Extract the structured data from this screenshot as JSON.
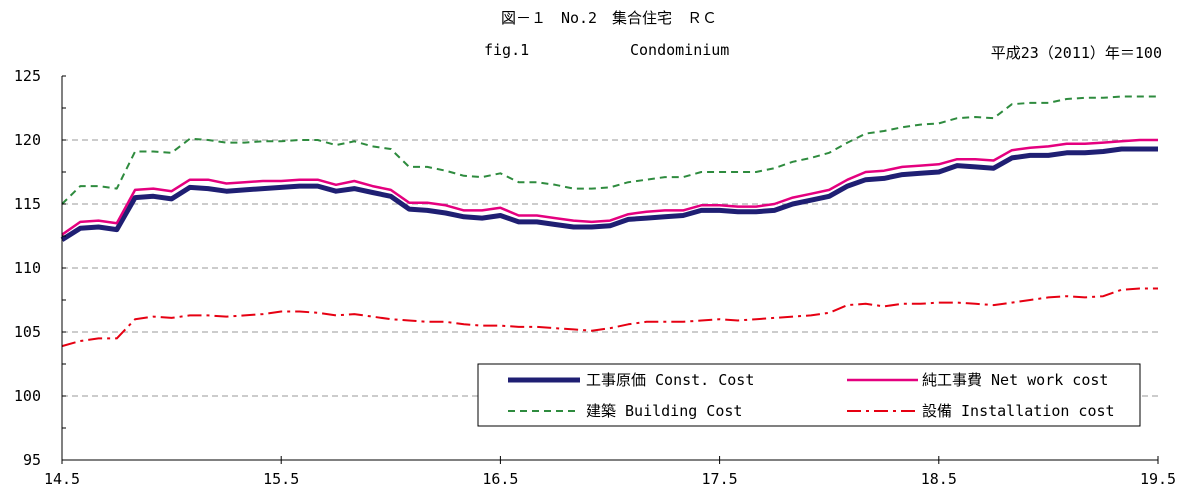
{
  "chart_data": {
    "type": "line",
    "title": "図－１　No.2　集合住宅　ＲＣ",
    "subtitle": [
      "fig.1",
      "Condominium"
    ],
    "base_note": "平成23（2011）年＝100",
    "ylim": [
      95,
      125
    ],
    "xlim": [
      14.5,
      19.5
    ],
    "y_ticks": [
      95,
      100,
      105,
      110,
      115,
      120,
      125
    ],
    "x_ticks": [
      "14.5",
      "15.5",
      "16.5",
      "17.5",
      "18.5",
      "19.5"
    ],
    "grid": true,
    "legend": "inside-bottom-right",
    "series": [
      {
        "name": "工事原価 Const. Cost",
        "color": "#1F1F73",
        "style": "solid",
        "values": [
          112.2,
          113.1,
          113.2,
          113.0,
          115.5,
          115.6,
          115.4,
          116.3,
          116.2,
          116.0,
          116.1,
          116.2,
          116.3,
          116.4,
          116.4,
          116.0,
          116.2,
          115.9,
          115.6,
          114.6,
          114.5,
          114.3,
          114.0,
          113.9,
          114.1,
          113.6,
          113.6,
          113.4,
          113.2,
          113.2,
          113.3,
          113.8,
          113.9,
          114.0,
          114.1,
          114.5,
          114.5,
          114.4,
          114.4,
          114.5,
          115.0,
          115.3,
          115.6,
          116.4,
          116.9,
          117.0,
          117.3,
          117.4,
          117.5,
          118.0,
          117.9,
          117.8,
          118.6,
          118.8,
          118.8,
          119.0,
          119.0,
          119.1,
          119.3,
          119.3,
          119.3
        ]
      },
      {
        "name": "純工事費 Net work cost",
        "color": "#E4007F",
        "style": "solid",
        "values": [
          112.6,
          113.6,
          113.7,
          113.5,
          116.1,
          116.2,
          116.0,
          116.9,
          116.9,
          116.6,
          116.7,
          116.8,
          116.8,
          116.9,
          116.9,
          116.5,
          116.8,
          116.4,
          116.1,
          115.1,
          115.1,
          114.9,
          114.5,
          114.5,
          114.7,
          114.1,
          114.1,
          113.9,
          113.7,
          113.6,
          113.7,
          114.2,
          114.4,
          114.5,
          114.5,
          114.9,
          114.9,
          114.8,
          114.8,
          115.0,
          115.5,
          115.8,
          116.1,
          116.9,
          117.5,
          117.6,
          117.9,
          118.0,
          118.1,
          118.5,
          118.5,
          118.4,
          119.2,
          119.4,
          119.5,
          119.7,
          119.7,
          119.8,
          119.9,
          120.0,
          120.0
        ]
      },
      {
        "name": "建築 Building Cost",
        "color": "#2E8B3E",
        "style": "dashed",
        "values": [
          115.0,
          116.4,
          116.4,
          116.2,
          119.1,
          119.1,
          119.0,
          120.1,
          120.0,
          119.8,
          119.8,
          119.9,
          119.9,
          120.0,
          120.0,
          119.6,
          119.9,
          119.5,
          119.3,
          117.9,
          117.9,
          117.6,
          117.2,
          117.1,
          117.4,
          116.7,
          116.7,
          116.5,
          116.2,
          116.2,
          116.3,
          116.7,
          116.9,
          117.1,
          117.1,
          117.5,
          117.5,
          117.5,
          117.5,
          117.8,
          118.3,
          118.6,
          119.0,
          119.8,
          120.5,
          120.7,
          121.0,
          121.2,
          121.3,
          121.7,
          121.8,
          121.7,
          122.8,
          122.9,
          122.9,
          123.2,
          123.3,
          123.3,
          123.4,
          123.4,
          123.4
        ]
      },
      {
        "name": "設備 Installation cost",
        "color": "#E60012",
        "style": "dashdot",
        "values": [
          103.9,
          104.3,
          104.5,
          104.5,
          106.0,
          106.2,
          106.1,
          106.3,
          106.3,
          106.2,
          106.3,
          106.4,
          106.6,
          106.6,
          106.5,
          106.3,
          106.4,
          106.2,
          106.0,
          105.9,
          105.8,
          105.8,
          105.6,
          105.5,
          105.5,
          105.4,
          105.4,
          105.3,
          105.2,
          105.1,
          105.3,
          105.6,
          105.8,
          105.8,
          105.8,
          105.9,
          106.0,
          105.9,
          106.0,
          106.1,
          106.2,
          106.3,
          106.5,
          107.1,
          107.2,
          107.0,
          107.2,
          107.2,
          107.3,
          107.3,
          107.2,
          107.1,
          107.3,
          107.5,
          107.7,
          107.8,
          107.7,
          107.8,
          108.3,
          108.4,
          108.4
        ]
      }
    ]
  }
}
